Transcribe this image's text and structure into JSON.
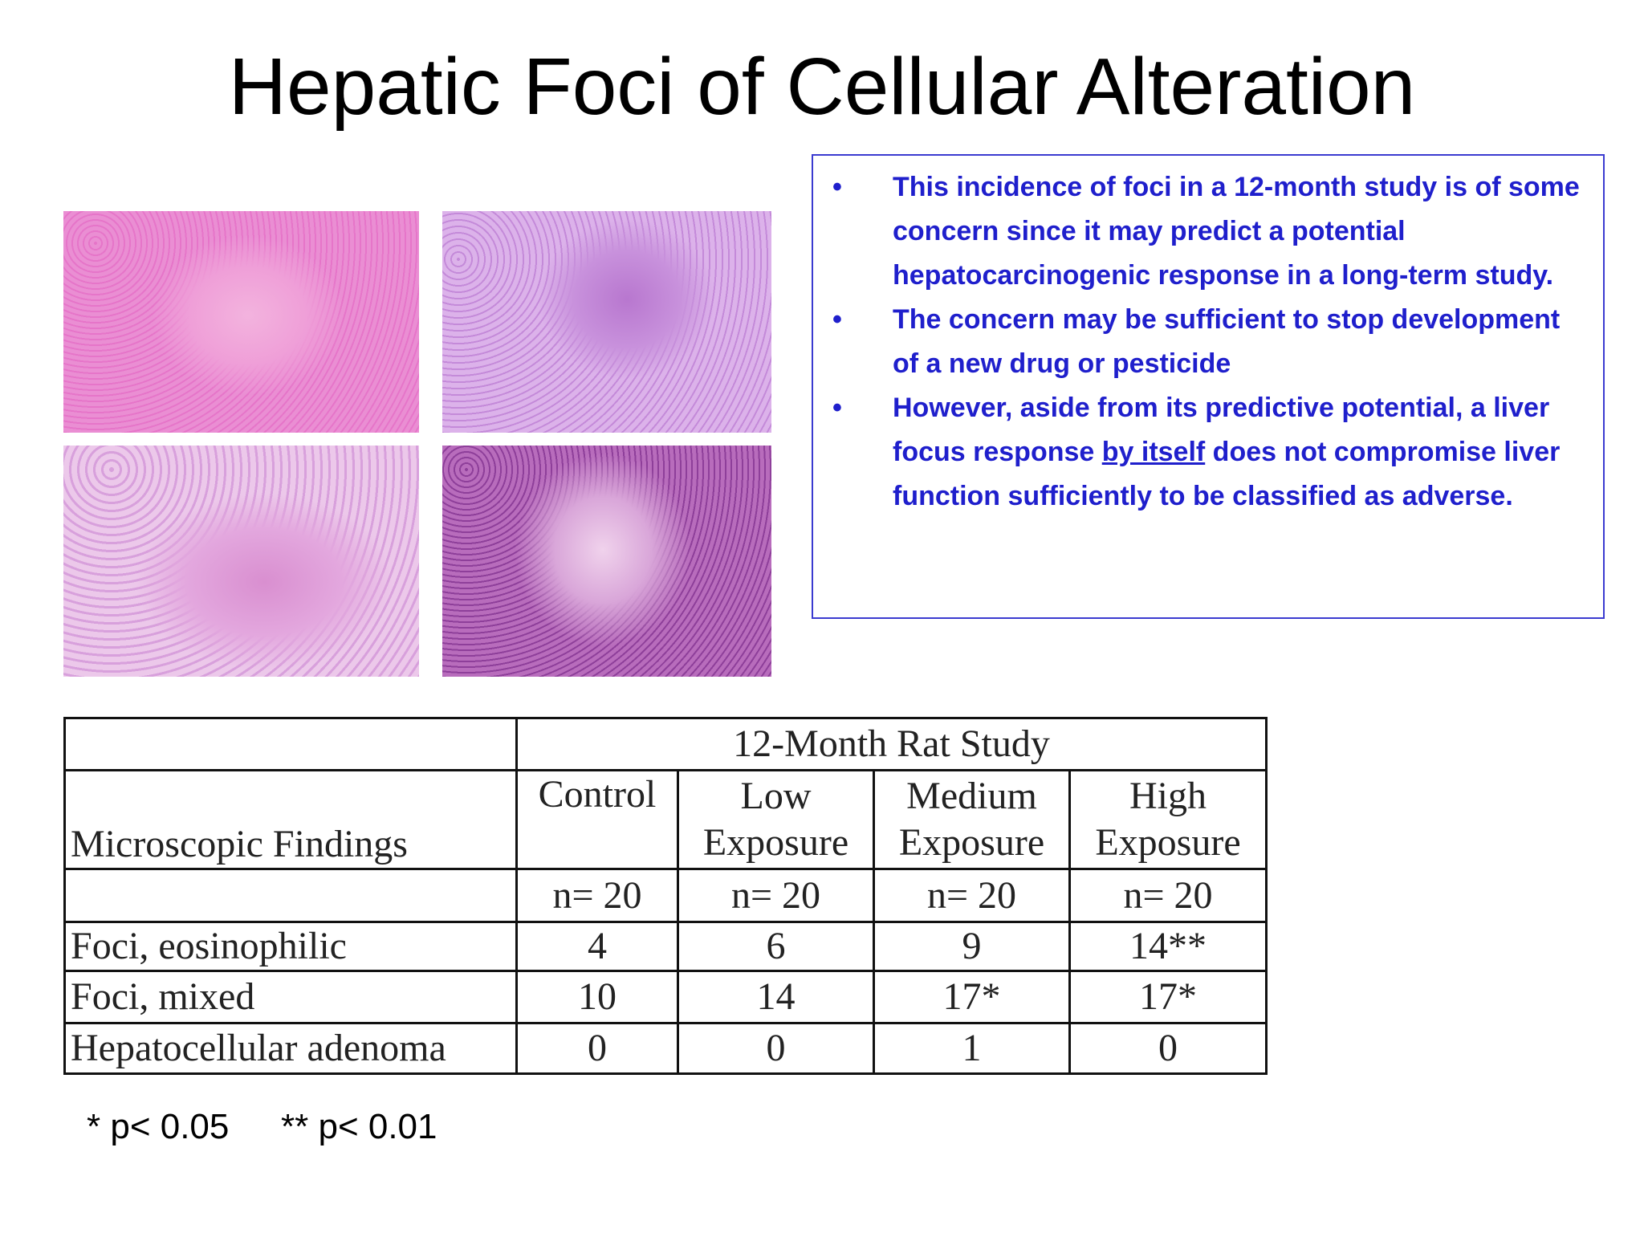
{
  "title": "Hepatic Foci of Cellular Alteration",
  "bullets": [
    {
      "text": "This incidence of foci in a 12-month study is of some concern since it may predict a potential hepatocarcinogenic response in a long-term study."
    },
    {
      "text": "The concern may be sufficient to stop development of a new drug or pesticide"
    },
    {
      "before": "However, aside from its predictive potential, a liver focus response ",
      "underlined": "by itself",
      "after": " does not compromise liver function sufficiently to be classified as adverse."
    }
  ],
  "table": {
    "header": "12-Month Rat Study",
    "row_header": "Microscopic Findings",
    "columns": [
      "Control",
      "Low Exposure",
      "Medium Exposure",
      "High Exposure"
    ],
    "n": [
      "n= 20",
      "n= 20",
      "n= 20",
      "n= 20"
    ],
    "rows": [
      [
        "Foci, eosinophilic",
        "4",
        "6",
        "9",
        "14**"
      ],
      [
        "Foci, mixed",
        "10",
        "14",
        "17*",
        "17*"
      ],
      [
        "Hepatocellular adenoma",
        "0",
        "0",
        "1",
        "0"
      ]
    ]
  },
  "footnotes": [
    "* p< 0.05",
    "** p< 0.01"
  ]
}
